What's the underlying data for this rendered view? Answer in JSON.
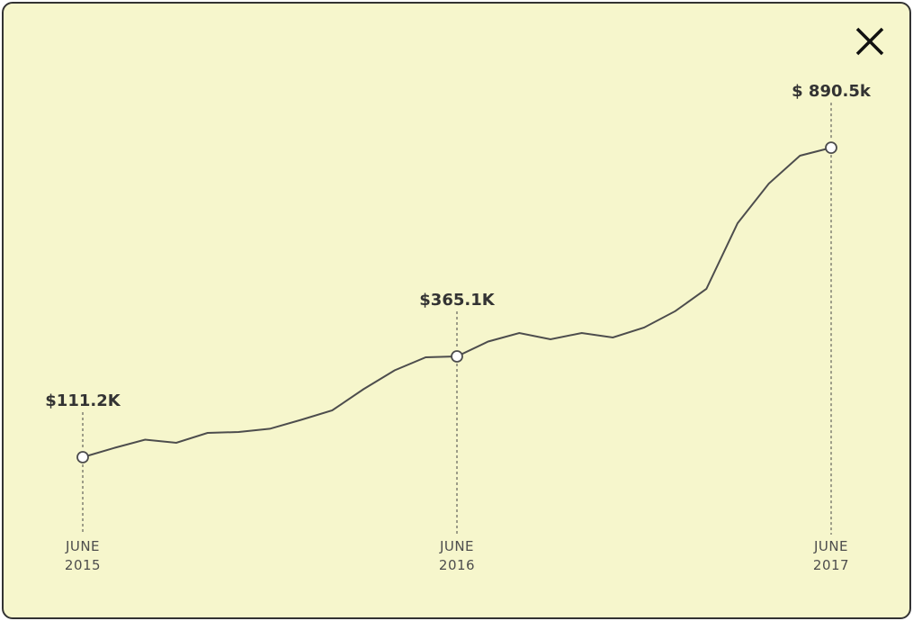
{
  "chart_data": {
    "type": "line",
    "categories": [
      "JUNE\n2015",
      null,
      null,
      null,
      null,
      null,
      null,
      null,
      null,
      null,
      null,
      null,
      "JUNE\n2016",
      null,
      null,
      null,
      null,
      null,
      null,
      null,
      null,
      null,
      null,
      null,
      "JUNE\n2017"
    ],
    "series": [
      {
        "color": "#4d4d4d",
        "values": [
          111.2,
          134.4,
          155.5,
          147.6,
          172.5,
          174.8,
          182.9,
          205.3,
          229.1,
          282.4,
          330.0,
          362.8,
          365.1,
          402.5,
          424.0,
          408.2,
          424.0,
          412.7,
          437.6,
          479.1,
          535.1,
          700.5,
          800.2,
          870.4,
          890.5
        ],
        "value_labels": [
          "$111.2K",
          null,
          null,
          null,
          null,
          null,
          null,
          null,
          null,
          null,
          null,
          null,
          "$365.1K",
          null,
          null,
          null,
          null,
          null,
          null,
          null,
          null,
          null,
          null,
          null,
          "$ 890.5k"
        ]
      }
    ],
    "ylim": [
      0,
      1000
    ]
  }
}
